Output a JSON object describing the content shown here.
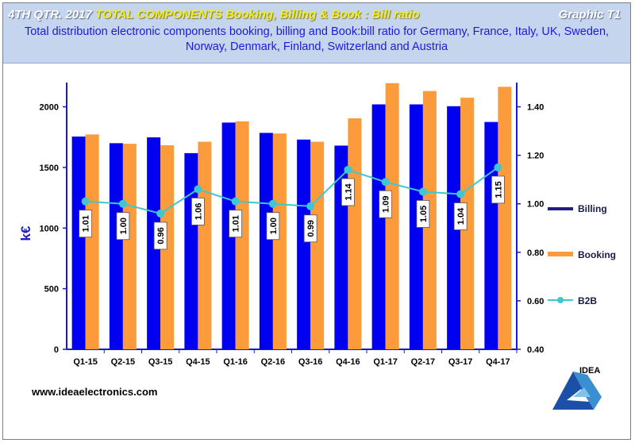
{
  "header": {
    "title_main": "4TH QTR. 2017",
    "title_accent": "TOTAL COMPONENTS  Booking, Billing  & Book : Bill ratio",
    "graphic_tag": "Graphic  T1",
    "subtitle_line1": "Total distribution electronic components booking, billing and Book:bill ratio for Germany,  France, Italy, UK, Sweden,",
    "subtitle_line2": "Norway, Denmark, Finland, Switzerland and Austria"
  },
  "footer": {
    "website": "www.ideaelectronics.com"
  },
  "logo": {
    "text": "IDEA"
  },
  "colors": {
    "billing": "#0000f0",
    "booking": "#fb9b3c",
    "b2b": "#3fc6d2",
    "axis": "#1a1acc"
  },
  "chart_data": {
    "type": "bar",
    "categories": [
      "Q1-15",
      "Q2-15",
      "Q3-15",
      "Q4-15",
      "Q1-16",
      "Q2-16",
      "Q3-16",
      "Q4-16",
      "Q1-17",
      "Q2-17",
      "Q3-17",
      "Q4-17"
    ],
    "ylabel": "k€",
    "ylim": [
      0,
      2200
    ],
    "yticks": [
      0,
      500,
      1000,
      1500,
      2000
    ],
    "y2lim": [
      0.4,
      1.5
    ],
    "y2ticks": [
      "0.40",
      "0.60",
      "0.80",
      "1.00",
      "1.20",
      "1.40"
    ],
    "legend_position": "right",
    "grid": false,
    "series": [
      {
        "name": "Billing",
        "type": "bar",
        "values": [
          1755,
          1700,
          1748,
          1618,
          1870,
          1785,
          1730,
          1680,
          2020,
          2020,
          2005,
          1875
        ]
      },
      {
        "name": "Booking",
        "type": "bar",
        "values": [
          1772,
          1695,
          1683,
          1712,
          1880,
          1780,
          1712,
          1905,
          2195,
          2130,
          2075,
          2165
        ]
      },
      {
        "name": "B2B",
        "type": "line",
        "axis": "secondary",
        "values": [
          1.01,
          1.0,
          0.96,
          1.06,
          1.01,
          1.0,
          0.99,
          1.14,
          1.09,
          1.05,
          1.04,
          1.15
        ],
        "labels": [
          "1.01",
          "1.00",
          "0.96",
          "1.06",
          "1.01",
          "1.00",
          "0.99",
          "1.14",
          "1.09",
          "1.05",
          "1.04",
          "1.15"
        ]
      }
    ]
  }
}
